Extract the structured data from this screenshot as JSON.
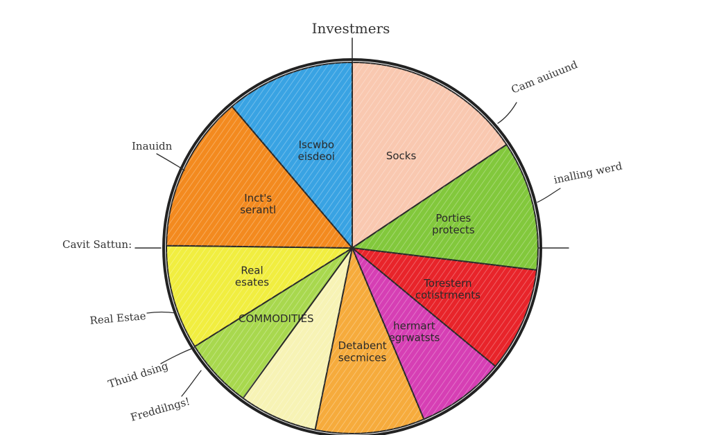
{
  "chart_data": {
    "type": "pie",
    "title": "Investmers",
    "slices": [
      {
        "label": "Socks",
        "value": 15.6,
        "color": "#f9c8b0"
      },
      {
        "label": "Porties protects",
        "value": 11.3,
        "color": "#82c83c"
      },
      {
        "label": "Torestern cotistrments",
        "value": 9.1,
        "color": "#e8242a"
      },
      {
        "label": "hermart egrwatsts",
        "value": 7.7,
        "color": "#d63fb4"
      },
      {
        "label": "Detabent secmices",
        "value": 9.5,
        "color": "#f6ab3c"
      },
      {
        "label": "",
        "value": 6.8,
        "color": "#f7f3b5"
      },
      {
        "label": "COMMODITIES",
        "value": 6.1,
        "color": "#a8d84e"
      },
      {
        "label": "Real esates",
        "value": 9.1,
        "color": "#f1ee40"
      },
      {
        "label": "Inct's serantl",
        "value": 13.6,
        "color": "#f38a1f"
      },
      {
        "label": "Iscwbo eisdeoi",
        "value": 11.2,
        "color": "#39a3e3"
      }
    ],
    "annotations": [
      {
        "text": "Investmers"
      },
      {
        "text": "Cam auiuund"
      },
      {
        "text": "inalling werd"
      },
      {
        "text": "Inauidn"
      },
      {
        "text": "Cavit Sattun:"
      },
      {
        "text": "Real Estae"
      },
      {
        "text": "Thuid dsing"
      },
      {
        "text": "Freddilngs!"
      }
    ]
  }
}
